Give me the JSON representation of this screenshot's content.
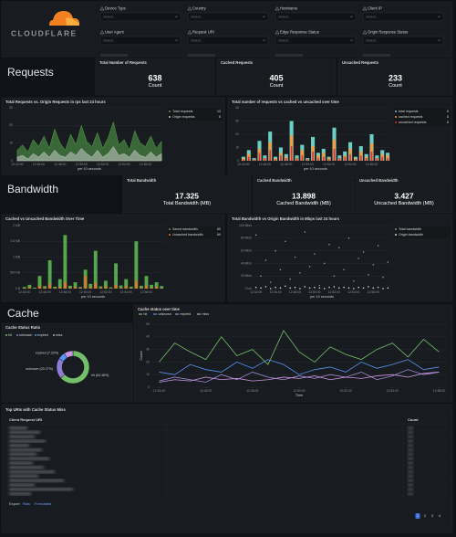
{
  "logo": "CLOUDFLARE",
  "filters": [
    {
      "label": "Device Type",
      "placeholder": "Select..."
    },
    {
      "label": "Country",
      "placeholder": "Select..."
    },
    {
      "label": "Hostname",
      "placeholder": "Select..."
    },
    {
      "label": "Client IP",
      "placeholder": "Select..."
    },
    {
      "label": "User Agent",
      "placeholder": "Select..."
    },
    {
      "label": "Request URI",
      "placeholder": "Select..."
    },
    {
      "label": "Edge Response Status",
      "placeholder": "Select..."
    },
    {
      "label": "Origin Response Status",
      "placeholder": "Select..."
    }
  ],
  "requests": {
    "heading": "Requests",
    "stats": [
      {
        "title": "Total Number of Requests",
        "value": 638,
        "unit": "Count"
      },
      {
        "title": "Cached Requests",
        "value": 405,
        "unit": "Count"
      },
      {
        "title": "Uncached Requests",
        "value": 233,
        "unit": "Count"
      }
    ]
  },
  "bandwidth": {
    "heading": "Bandwidth",
    "stats": [
      {
        "title": "Total Bandwidth",
        "value": 17.325,
        "unit": "Total Bandwidth (MB)"
      },
      {
        "title": "Cached Bandwidth",
        "value": 13.898,
        "unit": "Cached Bandwidth (MB)"
      },
      {
        "title": "Uncached Bandwidth",
        "value": 3.427,
        "unit": "Uncached Bandwidth (MB)"
      }
    ]
  },
  "cache": {
    "heading": "Cache"
  },
  "chart_data": [
    {
      "type": "area",
      "title": "Total Requests vs. Origin Requests in rps last 24 hours",
      "x_label": "per 10 seconds",
      "categories": [
        "12:44:00",
        null,
        null,
        null,
        "12:46:00",
        null,
        null,
        null,
        "12:48:00",
        null,
        null,
        null,
        "12:50:00",
        null,
        null,
        null,
        "12:52:00",
        null,
        null,
        null,
        "12:54:00",
        null,
        null,
        null,
        "12:56:00",
        null,
        null,
        null
      ],
      "ylim": [
        0,
        30
      ],
      "yticks": [
        0,
        10,
        20,
        30
      ],
      "grid": true,
      "series": [
        {
          "name": "Total requests",
          "color": "#56a64b",
          "legend_value": 13,
          "values": [
            6,
            9,
            5,
            12,
            8,
            14,
            7,
            18,
            10,
            6,
            15,
            9,
            20,
            11,
            8,
            16,
            7,
            13,
            22,
            9,
            12,
            6,
            17,
            10,
            8,
            14,
            7,
            11
          ]
        },
        {
          "name": "Origin requests",
          "color": "#c9cacc",
          "legend_value": 6,
          "values": [
            2,
            3,
            1,
            4,
            2,
            5,
            2,
            6,
            3,
            2,
            5,
            3,
            7,
            4,
            2,
            6,
            2,
            4,
            8,
            3,
            4,
            2,
            6,
            3,
            2,
            5,
            2,
            4
          ]
        }
      ]
    },
    {
      "type": "bar",
      "title": "Total number of requests vs cached vs uncached over time",
      "x_label": "per 10 seconds",
      "categories": [
        "12:44:00",
        null,
        null,
        null,
        "12:46:00",
        null,
        null,
        null,
        "12:48:00",
        null,
        null,
        null,
        "12:50:00",
        null,
        null,
        null,
        "12:52:00",
        null,
        null,
        null,
        "12:54:00",
        null,
        null,
        null,
        "12:56:00",
        null,
        null,
        null
      ],
      "ylim": [
        0,
        40
      ],
      "yticks": [
        0,
        10,
        20,
        30,
        40
      ],
      "grid": true,
      "series": [
        {
          "name": "total requests",
          "color": "#6ccfc5",
          "legend_value": 6,
          "values": [
            3,
            8,
            2,
            15,
            4,
            22,
            3,
            10,
            5,
            30,
            4,
            12,
            2,
            18,
            6,
            9,
            3,
            25,
            4,
            7,
            14,
            3,
            11,
            5,
            20,
            4,
            8,
            6
          ]
        },
        {
          "name": "cached requests",
          "color": "#ff9830",
          "legend_value": 6,
          "values": [
            2,
            5,
            1,
            9,
            2,
            14,
            2,
            6,
            3,
            19,
            2,
            8,
            1,
            11,
            4,
            6,
            2,
            16,
            2,
            4,
            9,
            2,
            7,
            3,
            13,
            2,
            5,
            4
          ]
        },
        {
          "name": "uncached requests",
          "color": "#e02f44",
          "legend_value": 6,
          "values": [
            1,
            3,
            1,
            6,
            2,
            8,
            1,
            4,
            2,
            11,
            2,
            4,
            1,
            7,
            2,
            3,
            1,
            9,
            2,
            3,
            5,
            1,
            4,
            2,
            7,
            2,
            3,
            2
          ]
        }
      ]
    },
    {
      "type": "bar",
      "title": "Cached vs Uncached Bandwidth Over Time",
      "x_label": "per 10 seconds",
      "categories": [
        "12:44:00",
        null,
        null,
        null,
        "12:46:00",
        null,
        null,
        null,
        "12:48:00",
        null,
        null,
        null,
        "12:50:00",
        null,
        null,
        null,
        "12:52:00",
        null,
        null,
        null,
        "12:54:00",
        null,
        null,
        null,
        "12:56:00",
        null,
        null,
        null
      ],
      "ylim": [
        0,
        2000
      ],
      "yticks": [
        {
          "value": 0,
          "label": "0 B"
        },
        {
          "value": 500,
          "label": "500 KB"
        },
        {
          "value": 1000,
          "label": "1 MB"
        },
        {
          "value": 1500,
          "label": "1.5 MB"
        },
        {
          "value": 2000,
          "label": "2 MB"
        }
      ],
      "grid": true,
      "series": [
        {
          "name": "Saved bandwidth",
          "color": "#56a64b",
          "legend_value": 69,
          "values": [
            50,
            120,
            30,
            400,
            80,
            900,
            60,
            300,
            1700,
            90,
            200,
            50,
            600,
            150,
            1200,
            70,
            250,
            40,
            800,
            100,
            300,
            60,
            1500,
            90,
            400,
            120,
            200,
            80
          ]
        },
        {
          "name": "Uncached bandwidth",
          "color": "#e0752d",
          "legend_value": 69,
          "values": [
            20,
            40,
            10,
            90,
            30,
            150,
            20,
            60,
            200,
            30,
            50,
            20,
            400,
            40,
            180,
            30,
            70,
            10,
            120,
            30,
            80,
            20,
            250,
            30,
            90,
            40,
            60,
            20
          ]
        }
      ]
    },
    {
      "type": "scatter",
      "title": "Total Bandwidth vs Origin Bandwidth in Mbps last 24 hours",
      "x_label": "per 10 seconds",
      "categories": [
        "12:44:00",
        null,
        null,
        null,
        "12:46:00",
        null,
        null,
        null,
        "12:48:00",
        null,
        null,
        null,
        "12:50:00",
        null,
        null,
        null,
        "12:52:00",
        null,
        null,
        null,
        "12:54:00",
        null,
        null,
        null,
        "12:56:00",
        null,
        null,
        null
      ],
      "ylim": [
        0,
        100
      ],
      "yticks": [
        {
          "value": 0,
          "label": "0 b/s"
        },
        {
          "value": 20,
          "label": "20 Mb/s"
        },
        {
          "value": 40,
          "label": "40 Mb/s"
        },
        {
          "value": 60,
          "label": "60 Mb/s"
        },
        {
          "value": 80,
          "label": "80 Mb/s"
        },
        {
          "value": 100,
          "label": "100 Mb/s"
        }
      ],
      "grid": true,
      "series": [
        {
          "name": "Total bandwidth",
          "color": "#8e9196",
          "values": [
            85,
            20,
            45,
            10,
            60,
            30,
            75,
            15,
            50,
            25,
            90,
            35,
            55,
            5,
            40,
            70,
            20,
            65,
            30,
            80,
            12,
            48,
            58,
            22,
            38,
            68,
            18,
            42
          ]
        },
        {
          "name": "Origin bandwidth",
          "color": "#d8d9da",
          "values": [
            2,
            1,
            3,
            0,
            2,
            1,
            4,
            1,
            2,
            0,
            3,
            1,
            2,
            1,
            0,
            2,
            3,
            1,
            2,
            1,
            0,
            2,
            1,
            3,
            1,
            2,
            0,
            1
          ]
        }
      ]
    },
    {
      "type": "pie",
      "title": "Cache Status Ratio",
      "categories": [
        "hit",
        "unknown",
        "expired",
        "miss"
      ],
      "values": [
        63.38,
        20.27,
        7.32,
        9.03
      ],
      "value_labels": [
        "hit (63.38%)",
        "unknown (20.27%)",
        "expired (7.32%)",
        null
      ],
      "colors": [
        "#73bf69",
        "#8f7bd8",
        "#5794f2",
        "#ca95e5"
      ]
    },
    {
      "type": "line",
      "title": "Cache status over time",
      "x_label": "Time",
      "y_label": "Count",
      "categories": [
        "12:44:00",
        null,
        null,
        "12:46:00",
        null,
        null,
        "12:48:00",
        null,
        null,
        "12:50:00",
        null,
        null,
        "12:52:00",
        null,
        null,
        "12:54:00",
        null,
        null,
        "12:56:00"
      ],
      "ylim": [
        0,
        50
      ],
      "yticks": [
        0,
        10,
        20,
        30,
        40,
        50
      ],
      "grid": true,
      "series": [
        {
          "name": "hit",
          "color": "#73bf69",
          "values": [
            20,
            35,
            28,
            22,
            40,
            25,
            30,
            18,
            45,
            28,
            20,
            32,
            26,
            22,
            30,
            35,
            24,
            38,
            28
          ]
        },
        {
          "name": "unknown",
          "color": "#5794f2",
          "values": [
            12,
            10,
            18,
            14,
            12,
            20,
            15,
            22,
            18,
            10,
            14,
            16,
            12,
            20,
            15,
            18,
            22,
            14,
            16
          ]
        },
        {
          "name": "expired",
          "color": "#a28bd4",
          "values": [
            5,
            8,
            6,
            4,
            10,
            6,
            12,
            8,
            6,
            9,
            7,
            10,
            8,
            12,
            6,
            9,
            14,
            10,
            12
          ]
        },
        {
          "name": "miss",
          "color": "#ca95e5",
          "values": [
            4,
            6,
            5,
            8,
            6,
            7,
            5,
            6,
            8,
            7,
            9,
            6,
            8,
            7,
            9,
            10,
            8,
            11,
            12
          ]
        }
      ]
    }
  ],
  "table": {
    "title": "Top URIs with Cache Status Miss",
    "columns": [
      "Client Request URI",
      "Count"
    ]
  },
  "export": {
    "label": "Export",
    "options": [
      "Raw",
      "Formatted"
    ]
  },
  "pagination": [
    1,
    2,
    3,
    4
  ]
}
